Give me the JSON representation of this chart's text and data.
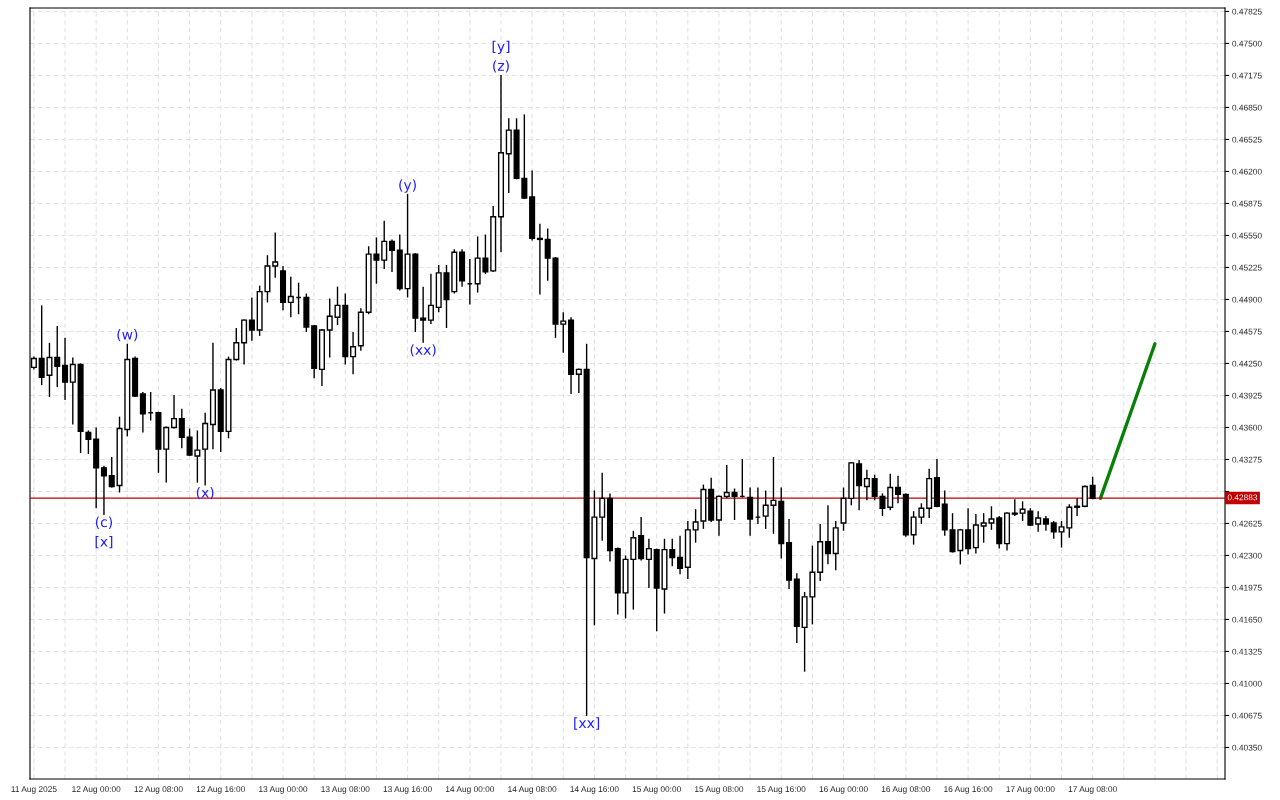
{
  "chart_data": {
    "type": "candlestick",
    "x": [
      "2025-08-11T16:00",
      "2025-08-11T17:00",
      "2025-08-11T18:00",
      "2025-08-11T19:00",
      "2025-08-11T20:00",
      "2025-08-11T21:00",
      "2025-08-11T22:00",
      "2025-08-11T23:00",
      "2025-08-12T00:00",
      "2025-08-12T01:00",
      "2025-08-12T02:00",
      "2025-08-12T03:00",
      "2025-08-12T04:00",
      "2025-08-12T05:00",
      "2025-08-12T06:00",
      "2025-08-12T07:00",
      "2025-08-12T08:00",
      "2025-08-12T09:00",
      "2025-08-12T10:00",
      "2025-08-12T11:00",
      "2025-08-12T12:00",
      "2025-08-12T13:00",
      "2025-08-12T14:00",
      "2025-08-12T15:00",
      "2025-08-12T16:00",
      "2025-08-12T17:00",
      "2025-08-12T18:00",
      "2025-08-12T19:00",
      "2025-08-12T20:00",
      "2025-08-12T21:00",
      "2025-08-12T22:00",
      "2025-08-12T23:00",
      "2025-08-13T00:00",
      "2025-08-13T01:00",
      "2025-08-13T02:00",
      "2025-08-13T03:00",
      "2025-08-13T04:00",
      "2025-08-13T05:00",
      "2025-08-13T06:00",
      "2025-08-13T07:00",
      "2025-08-13T08:00",
      "2025-08-13T09:00",
      "2025-08-13T10:00",
      "2025-08-13T11:00",
      "2025-08-13T12:00",
      "2025-08-13T13:00",
      "2025-08-13T14:00",
      "2025-08-13T15:00",
      "2025-08-13T16:00",
      "2025-08-13T17:00",
      "2025-08-13T18:00",
      "2025-08-13T19:00",
      "2025-08-13T20:00",
      "2025-08-13T21:00",
      "2025-08-13T22:00",
      "2025-08-13T23:00",
      "2025-08-14T00:00",
      "2025-08-14T01:00",
      "2025-08-14T02:00",
      "2025-08-14T03:00",
      "2025-08-14T04:00",
      "2025-08-14T05:00",
      "2025-08-14T06:00",
      "2025-08-14T07:00",
      "2025-08-14T08:00",
      "2025-08-14T09:00",
      "2025-08-14T10:00",
      "2025-08-14T11:00",
      "2025-08-14T12:00",
      "2025-08-14T13:00",
      "2025-08-14T14:00",
      "2025-08-14T15:00",
      "2025-08-14T16:00",
      "2025-08-14T17:00",
      "2025-08-14T18:00",
      "2025-08-14T19:00",
      "2025-08-14T20:00",
      "2025-08-14T21:00",
      "2025-08-14T22:00",
      "2025-08-14T23:00",
      "2025-08-15T00:00",
      "2025-08-15T01:00",
      "2025-08-15T02:00",
      "2025-08-15T03:00",
      "2025-08-15T04:00",
      "2025-08-15T05:00",
      "2025-08-15T06:00",
      "2025-08-15T07:00",
      "2025-08-15T08:00",
      "2025-08-15T09:00",
      "2025-08-15T10:00",
      "2025-08-15T11:00",
      "2025-08-15T12:00",
      "2025-08-15T13:00",
      "2025-08-15T14:00",
      "2025-08-15T15:00",
      "2025-08-15T16:00",
      "2025-08-15T17:00",
      "2025-08-15T18:00",
      "2025-08-15T19:00",
      "2025-08-15T20:00",
      "2025-08-15T21:00",
      "2025-08-15T22:00",
      "2025-08-15T23:00",
      "2025-08-16T00:00",
      "2025-08-16T01:00",
      "2025-08-16T02:00",
      "2025-08-16T03:00",
      "2025-08-16T04:00",
      "2025-08-16T05:00",
      "2025-08-16T06:00",
      "2025-08-16T07:00",
      "2025-08-16T08:00",
      "2025-08-16T09:00",
      "2025-08-16T10:00",
      "2025-08-16T11:00",
      "2025-08-16T12:00",
      "2025-08-16T13:00",
      "2025-08-16T14:00",
      "2025-08-16T15:00",
      "2025-08-16T16:00",
      "2025-08-16T17:00",
      "2025-08-16T18:00",
      "2025-08-16T19:00",
      "2025-08-16T20:00",
      "2025-08-16T21:00",
      "2025-08-16T22:00",
      "2025-08-16T23:00",
      "2025-08-17T00:00",
      "2025-08-17T01:00",
      "2025-08-17T02:00",
      "2025-08-17T03:00",
      "2025-08-17T04:00",
      "2025-08-17T05:00",
      "2025-08-17T06:00",
      "2025-08-17T07:00",
      "2025-08-17T08:00"
    ],
    "ohlc": [
      [
        0.4421,
        0.4432,
        0.4419,
        0.443
      ],
      [
        0.443,
        0.4484,
        0.4403,
        0.4411
      ],
      [
        0.4413,
        0.4446,
        0.4391,
        0.4431
      ],
      [
        0.4431,
        0.4463,
        0.4401,
        0.4422
      ],
      [
        0.4423,
        0.4451,
        0.4388,
        0.4406
      ],
      [
        0.4406,
        0.4431,
        0.4363,
        0.4424
      ],
      [
        0.4424,
        0.4425,
        0.4334,
        0.4356
      ],
      [
        0.4355,
        0.4357,
        0.4333,
        0.4348
      ],
      [
        0.4348,
        0.436,
        0.4278,
        0.4319
      ],
      [
        0.4319,
        0.4321,
        0.4271,
        0.4311
      ],
      [
        0.4311,
        0.433,
        0.4299,
        0.43
      ],
      [
        0.4301,
        0.4371,
        0.4294,
        0.4359
      ],
      [
        0.4358,
        0.4445,
        0.4351,
        0.4429
      ],
      [
        0.443,
        0.4432,
        0.4391,
        0.4392
      ],
      [
        0.4394,
        0.4396,
        0.4355,
        0.4374
      ],
      [
        0.4375,
        0.4396,
        0.4367,
        0.4375
      ],
      [
        0.4375,
        0.4376,
        0.4314,
        0.4338
      ],
      [
        0.4338,
        0.4361,
        0.4304,
        0.436
      ],
      [
        0.436,
        0.4393,
        0.4359,
        0.4369
      ],
      [
        0.4369,
        0.4379,
        0.4339,
        0.435
      ],
      [
        0.435,
        0.4359,
        0.4331,
        0.4332
      ],
      [
        0.4331,
        0.4357,
        0.4304,
        0.4337
      ],
      [
        0.4338,
        0.4375,
        0.4301,
        0.4364
      ],
      [
        0.4363,
        0.4446,
        0.4338,
        0.4398
      ],
      [
        0.4398,
        0.44,
        0.4335,
        0.4356
      ],
      [
        0.4356,
        0.4432,
        0.4349,
        0.4429
      ],
      [
        0.4429,
        0.4461,
        0.4428,
        0.4446
      ],
      [
        0.4446,
        0.447,
        0.4424,
        0.4469
      ],
      [
        0.4469,
        0.4492,
        0.4448,
        0.4459
      ],
      [
        0.4459,
        0.4504,
        0.4453,
        0.4498
      ],
      [
        0.4498,
        0.4535,
        0.4487,
        0.4524
      ],
      [
        0.4524,
        0.4558,
        0.4512,
        0.4528
      ],
      [
        0.4519,
        0.4524,
        0.4479,
        0.4487
      ],
      [
        0.4487,
        0.4513,
        0.4472,
        0.4493
      ],
      [
        0.4492,
        0.4507,
        0.4475,
        0.4492
      ],
      [
        0.4492,
        0.4496,
        0.4457,
        0.4462
      ],
      [
        0.4463,
        0.4464,
        0.441,
        0.442
      ],
      [
        0.4419,
        0.446,
        0.4402,
        0.4459
      ],
      [
        0.4459,
        0.4491,
        0.4431,
        0.4473
      ],
      [
        0.4472,
        0.4503,
        0.4464,
        0.4484
      ],
      [
        0.4484,
        0.4496,
        0.4424,
        0.4432
      ],
      [
        0.4432,
        0.4457,
        0.4414,
        0.4442
      ],
      [
        0.4443,
        0.4481,
        0.4438,
        0.4477
      ],
      [
        0.4477,
        0.4544,
        0.4475,
        0.4536
      ],
      [
        0.4536,
        0.4553,
        0.4506,
        0.453
      ],
      [
        0.453,
        0.457,
        0.4521,
        0.4549
      ],
      [
        0.4549,
        0.4551,
        0.4518,
        0.454
      ],
      [
        0.454,
        0.4556,
        0.4499,
        0.4501
      ],
      [
        0.4501,
        0.4597,
        0.4492,
        0.4536
      ],
      [
        0.4536,
        0.4537,
        0.4457,
        0.4471
      ],
      [
        0.4471,
        0.4503,
        0.4446,
        0.4469
      ],
      [
        0.4469,
        0.4516,
        0.4465,
        0.4484
      ],
      [
        0.4482,
        0.4525,
        0.4477,
        0.4517
      ],
      [
        0.4517,
        0.4525,
        0.4461,
        0.449
      ],
      [
        0.4498,
        0.4541,
        0.4496,
        0.4538
      ],
      [
        0.4538,
        0.4541,
        0.4503,
        0.4509
      ],
      [
        0.4506,
        0.4531,
        0.4485,
        0.4506
      ],
      [
        0.4506,
        0.4554,
        0.4497,
        0.4532
      ],
      [
        0.4532,
        0.4556,
        0.4516,
        0.4518
      ],
      [
        0.4519,
        0.4585,
        0.4518,
        0.4574
      ],
      [
        0.4574,
        0.4718,
        0.4538,
        0.4639
      ],
      [
        0.4638,
        0.4674,
        0.4598,
        0.4662
      ],
      [
        0.4662,
        0.4674,
        0.4612,
        0.4613
      ],
      [
        0.4613,
        0.4678,
        0.4592,
        0.4593
      ],
      [
        0.4594,
        0.4621,
        0.455,
        0.4552
      ],
      [
        0.4552,
        0.4567,
        0.4495,
        0.4551
      ],
      [
        0.4551,
        0.4562,
        0.4509,
        0.4532
      ],
      [
        0.4532,
        0.4533,
        0.4451,
        0.4465
      ],
      [
        0.4465,
        0.4477,
        0.4436,
        0.4468
      ],
      [
        0.4469,
        0.4472,
        0.4394,
        0.4414
      ],
      [
        0.4414,
        0.442,
        0.4395,
        0.4419
      ],
      [
        0.4419,
        0.4445,
        0.4067,
        0.4228
      ],
      [
        0.4227,
        0.4296,
        0.4159,
        0.4269
      ],
      [
        0.4269,
        0.4314,
        0.4245,
        0.4288
      ],
      [
        0.4288,
        0.4293,
        0.4224,
        0.4235
      ],
      [
        0.4237,
        0.4238,
        0.417,
        0.4192
      ],
      [
        0.4192,
        0.423,
        0.4166,
        0.4226
      ],
      [
        0.4226,
        0.4255,
        0.4175,
        0.4248
      ],
      [
        0.425,
        0.4269,
        0.4225,
        0.4227
      ],
      [
        0.4226,
        0.4247,
        0.4197,
        0.4237
      ],
      [
        0.4236,
        0.4237,
        0.4153,
        0.4197
      ],
      [
        0.4196,
        0.4247,
        0.4171,
        0.4236
      ],
      [
        0.4236,
        0.4247,
        0.4219,
        0.4228
      ],
      [
        0.4228,
        0.425,
        0.4211,
        0.4217
      ],
      [
        0.4218,
        0.4265,
        0.4206,
        0.4256
      ],
      [
        0.4256,
        0.4277,
        0.4243,
        0.4264
      ],
      [
        0.4265,
        0.4302,
        0.4257,
        0.4297
      ],
      [
        0.4297,
        0.4309,
        0.4264,
        0.4266
      ],
      [
        0.4266,
        0.4291,
        0.425,
        0.429
      ],
      [
        0.429,
        0.4322,
        0.4288,
        0.4294
      ],
      [
        0.4294,
        0.4298,
        0.4266,
        0.429
      ],
      [
        0.429,
        0.4328,
        0.4289,
        0.429
      ],
      [
        0.4289,
        0.4299,
        0.425,
        0.4267
      ],
      [
        0.4269,
        0.4299,
        0.4262,
        0.4269
      ],
      [
        0.427,
        0.4296,
        0.4257,
        0.4281
      ],
      [
        0.4281,
        0.433,
        0.4252,
        0.4286
      ],
      [
        0.4285,
        0.4299,
        0.4227,
        0.4242
      ],
      [
        0.4243,
        0.4267,
        0.4196,
        0.4205
      ],
      [
        0.4206,
        0.4212,
        0.4141,
        0.4158
      ],
      [
        0.4157,
        0.4193,
        0.4112,
        0.4188
      ],
      [
        0.4188,
        0.424,
        0.416,
        0.4213
      ],
      [
        0.4213,
        0.4262,
        0.4204,
        0.4244
      ],
      [
        0.4244,
        0.4281,
        0.4221,
        0.4232
      ],
      [
        0.4232,
        0.4265,
        0.4215,
        0.4258
      ],
      [
        0.4263,
        0.4299,
        0.4255,
        0.4288
      ],
      [
        0.4288,
        0.4325,
        0.4281,
        0.4324
      ],
      [
        0.4323,
        0.4327,
        0.4276,
        0.4301
      ],
      [
        0.43,
        0.4317,
        0.4286,
        0.4308
      ],
      [
        0.4308,
        0.4312,
        0.4286,
        0.429
      ],
      [
        0.429,
        0.4293,
        0.427,
        0.4278
      ],
      [
        0.4279,
        0.4313,
        0.4276,
        0.4299
      ],
      [
        0.4299,
        0.4311,
        0.4283,
        0.4292
      ],
      [
        0.4292,
        0.4293,
        0.4249,
        0.4251
      ],
      [
        0.4251,
        0.4275,
        0.4241,
        0.4269
      ],
      [
        0.4269,
        0.4283,
        0.4262,
        0.4278
      ],
      [
        0.4278,
        0.4318,
        0.4268,
        0.4308
      ],
      [
        0.4309,
        0.4328,
        0.4279,
        0.428
      ],
      [
        0.4282,
        0.4296,
        0.425,
        0.4256
      ],
      [
        0.4256,
        0.4273,
        0.4233,
        0.4234
      ],
      [
        0.4235,
        0.4257,
        0.4221,
        0.4256
      ],
      [
        0.4256,
        0.4278,
        0.4231,
        0.4237
      ],
      [
        0.4238,
        0.4272,
        0.4232,
        0.4261
      ],
      [
        0.426,
        0.4273,
        0.4243,
        0.4263
      ],
      [
        0.4263,
        0.428,
        0.4256,
        0.4267
      ],
      [
        0.4268,
        0.427,
        0.4237,
        0.4242
      ],
      [
        0.4242,
        0.4274,
        0.4235,
        0.4273
      ],
      [
        0.4273,
        0.4287,
        0.427,
        0.4272
      ],
      [
        0.4273,
        0.4285,
        0.4265,
        0.4277
      ],
      [
        0.4275,
        0.4278,
        0.426,
        0.4261
      ],
      [
        0.4262,
        0.4275,
        0.4254,
        0.4268
      ],
      [
        0.4267,
        0.427,
        0.4255,
        0.4262
      ],
      [
        0.4263,
        0.4265,
        0.4247,
        0.4254
      ],
      [
        0.4254,
        0.4265,
        0.4238,
        0.4259
      ],
      [
        0.4258,
        0.4282,
        0.4248,
        0.4279
      ],
      [
        0.4279,
        0.4288,
        0.427,
        0.428
      ],
      [
        0.428,
        0.4301,
        0.4279,
        0.43
      ],
      [
        0.4301,
        0.431,
        0.4287,
        0.4288
      ]
    ],
    "series": [
      {
        "type": "line",
        "color": "#078007",
        "x": [
          "2025-08-17T09:00",
          "2025-08-17T16:00"
        ],
        "values": [
          0.4288,
          0.4445
        ]
      }
    ],
    "xlim": [
      "2025-08-11T15:30",
      "2025-08-18T01:00"
    ],
    "ylim": [
      0.4003,
      0.4786
    ],
    "xticks": [
      {
        "value": "2025-08-11T16:00",
        "label": "11 Aug 2025"
      },
      {
        "value": "2025-08-11T20:00",
        "label": null
      },
      {
        "value": "2025-08-12T00:00",
        "label": "12 Aug 00:00"
      },
      {
        "value": "2025-08-12T04:00",
        "label": null
      },
      {
        "value": "2025-08-12T08:00",
        "label": "12 Aug 08:00"
      },
      {
        "value": "2025-08-12T12:00",
        "label": null
      },
      {
        "value": "2025-08-12T16:00",
        "label": "12 Aug 16:00"
      },
      {
        "value": "2025-08-12T20:00",
        "label": null
      },
      {
        "value": "2025-08-13T00:00",
        "label": "13 Aug 00:00"
      },
      {
        "value": "2025-08-13T04:00",
        "label": null
      },
      {
        "value": "2025-08-13T08:00",
        "label": "13 Aug 08:00"
      },
      {
        "value": "2025-08-13T12:00",
        "label": null
      },
      {
        "value": "2025-08-13T16:00",
        "label": "13 Aug 16:00"
      },
      {
        "value": "2025-08-13T20:00",
        "label": null
      },
      {
        "value": "2025-08-14T00:00",
        "label": "14 Aug 00:00"
      },
      {
        "value": "2025-08-14T04:00",
        "label": null
      },
      {
        "value": "2025-08-14T08:00",
        "label": "14 Aug 08:00"
      },
      {
        "value": "2025-08-14T12:00",
        "label": null
      },
      {
        "value": "2025-08-14T16:00",
        "label": "14 Aug 16:00"
      },
      {
        "value": "2025-08-14T20:00",
        "label": null
      },
      {
        "value": "2025-08-15T00:00",
        "label": "15 Aug 00:00"
      },
      {
        "value": "2025-08-15T04:00",
        "label": null
      },
      {
        "value": "2025-08-15T08:00",
        "label": "15 Aug 08:00"
      },
      {
        "value": "2025-08-15T12:00",
        "label": null
      },
      {
        "value": "2025-08-15T16:00",
        "label": "15 Aug 16:00"
      },
      {
        "value": "2025-08-15T20:00",
        "label": null
      },
      {
        "value": "2025-08-16T00:00",
        "label": "16 Aug 00:00"
      },
      {
        "value": "2025-08-16T04:00",
        "label": null
      },
      {
        "value": "2025-08-16T08:00",
        "label": "16 Aug 08:00"
      },
      {
        "value": "2025-08-16T12:00",
        "label": null
      },
      {
        "value": "2025-08-16T16:00",
        "label": "16 Aug 16:00"
      },
      {
        "value": "2025-08-16T20:00",
        "label": null
      },
      {
        "value": "2025-08-17T00:00",
        "label": "17 Aug 00:00"
      },
      {
        "value": "2025-08-17T04:00",
        "label": null
      },
      {
        "value": "2025-08-17T08:00",
        "label": "17 Aug 08:00"
      },
      {
        "value": "2025-08-17T12:00",
        "label": null
      },
      {
        "value": "2025-08-17T16:00",
        "label": null
      },
      {
        "value": "2025-08-17T20:00",
        "label": null
      },
      {
        "value": "2025-08-18T00:00",
        "label": null
      }
    ],
    "yticks": [
      {
        "value": 0.4035,
        "label": "0.40350"
      },
      0.40675,
      {
        "value": 0.41,
        "label": "0.41000"
      },
      0.41325,
      {
        "value": 0.4165,
        "label": "0.41650"
      },
      0.41975,
      {
        "value": 0.423,
        "label": "0.42300"
      },
      0.42625,
      {
        "value": 0.4295,
        "label": null
      },
      0.43275,
      {
        "value": 0.436,
        "label": "0.43600"
      },
      0.43925,
      {
        "value": 0.4425,
        "label": "0.44250"
      },
      0.44575,
      {
        "value": 0.449,
        "label": "0.44900"
      },
      0.45225,
      {
        "value": 0.4555,
        "label": "0.45550"
      },
      0.45875,
      {
        "value": 0.462,
        "label": "0.46200"
      },
      0.46525,
      {
        "value": 0.4685,
        "label": "0.46850"
      },
      0.47175,
      {
        "value": 0.475,
        "label": "0.47500"
      },
      0.47825
    ],
    "grid": true,
    "ref_lines": [
      {
        "axis": "y",
        "value": 0.42883,
        "label": "0.42883",
        "color": "#c00000"
      }
    ],
    "annotations": [
      {
        "text": "(c)",
        "x": "2025-08-12T01:00",
        "y": 0.4271
      },
      {
        "text": "[x]",
        "x": "2025-08-12T01:00",
        "y": 0.4271
      },
      {
        "text": "(w)",
        "x": "2025-08-12T04:00",
        "y": 0.4445
      },
      {
        "text": "(x)",
        "x": "2025-08-12T14:00",
        "y": 0.4301
      },
      {
        "text": "(y)",
        "x": "2025-08-13T16:00",
        "y": 0.4597
      },
      {
        "text": "(xx)",
        "x": "2025-08-13T18:00",
        "y": 0.4446
      },
      {
        "text": "(z)",
        "x": "2025-08-14T04:00",
        "y": 0.4718
      },
      {
        "text": "[y]",
        "x": "2025-08-14T04:00",
        "y": 0.4718
      },
      {
        "text": "[xx]",
        "x": "2025-08-14T15:00",
        "y": 0.4067
      }
    ]
  }
}
